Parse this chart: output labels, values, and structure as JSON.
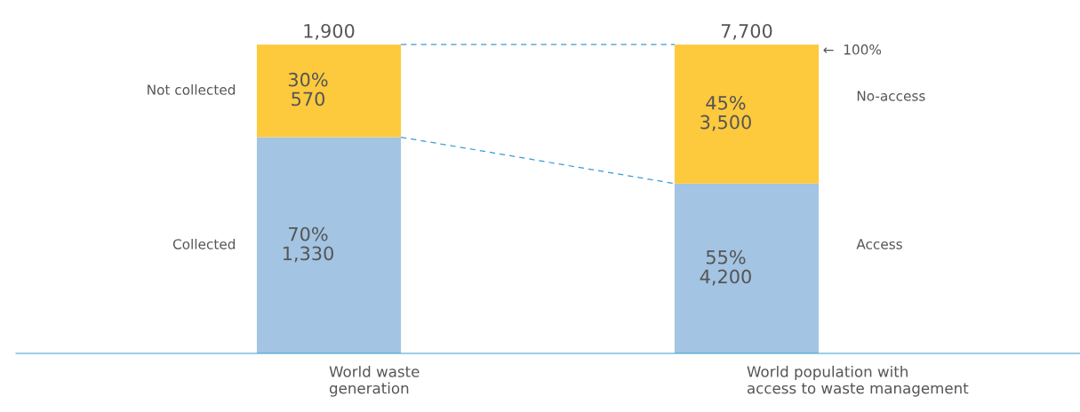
{
  "chart_data": {
    "type": "bar",
    "stacked": true,
    "categories": [
      "World waste\ngeneration",
      "World population with\naccess to waste management"
    ],
    "series": [
      {
        "color": "#a3c4e2",
        "values": [
          70,
          55
        ],
        "value_labels": [
          "70%\n1,330",
          "55%\n4,200"
        ]
      },
      {
        "color": "#fdc93d",
        "values": [
          30,
          45
        ],
        "value_labels": [
          "30%\n570",
          "45%\n3,500"
        ]
      }
    ],
    "tick_labels": "x",
    "grid": false,
    "legend": false,
    "annotations": [
      "1,900",
      "7,700",
      "Not collected",
      "Collected",
      "←  100%",
      "No-access",
      "Access"
    ]
  }
}
